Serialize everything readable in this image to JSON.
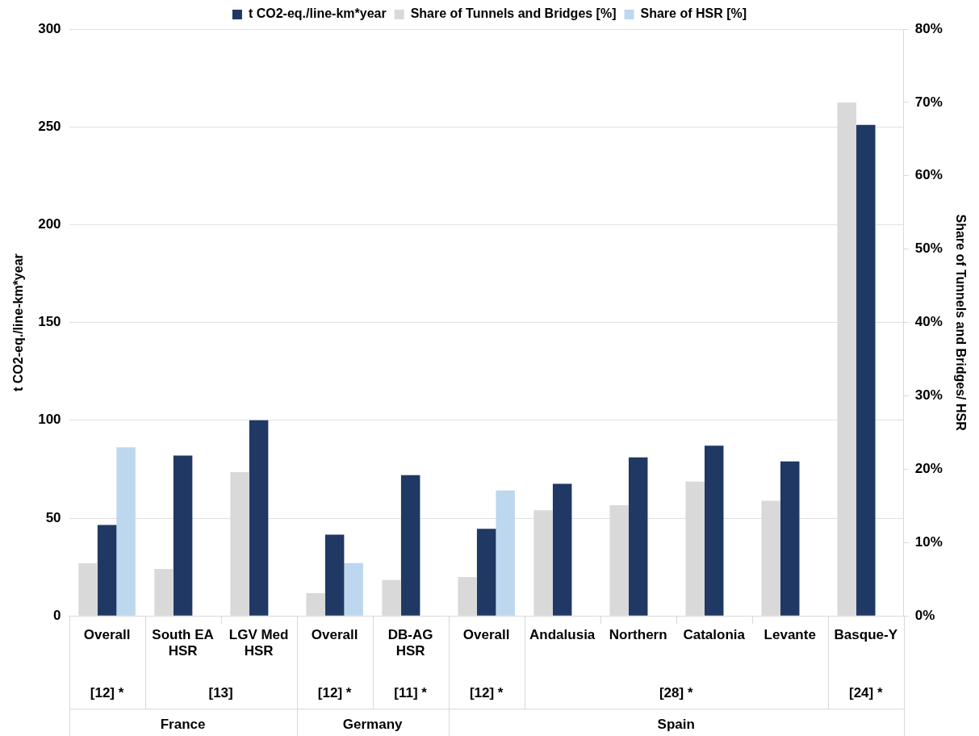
{
  "chart_data": {
    "type": "bar",
    "categories": [
      "Overall",
      "South EA HSR",
      "LGV Med HSR",
      "Overall",
      "DB-AG HSR",
      "Overall",
      "Andalusia",
      "Northern",
      "Catalonia",
      "Levante",
      "Basque-Y"
    ],
    "series": [
      {
        "name": "Share of Tunnels and Bridges [%]",
        "color": "#d9d9d9",
        "axis": "y2",
        "values": [
          7.2,
          6.4,
          19.6,
          3.1,
          4.9,
          5.3,
          14.4,
          15.1,
          18.3,
          15.7,
          70
        ]
      },
      {
        "name": "t CO2-eq./line-km*year",
        "color": "#203864",
        "values": [
          46.5,
          82,
          100,
          41.5,
          72,
          44.5,
          67.5,
          81,
          87,
          79,
          251
        ]
      },
      {
        "name": "Share of HSR [%]",
        "color": "#bdd7ee",
        "axis": "y2",
        "values": [
          23,
          null,
          null,
          7.2,
          null,
          17.1,
          null,
          null,
          null,
          null,
          null
        ]
      }
    ],
    "ylabel": "t CO2-eq./line-km*year",
    "y2label": "Share of Tunnels and Bridges/ HSR",
    "ylim": [
      0,
      300
    ],
    "yticks": [
      0,
      50,
      100,
      150,
      200,
      250,
      300
    ],
    "y2lim": [
      0,
      80
    ],
    "y2ticks": [
      {
        "value": 0,
        "label": "0%"
      },
      {
        "value": 10,
        "label": "10%"
      },
      {
        "value": 20,
        "label": "20%"
      },
      {
        "value": 30,
        "label": "30%"
      },
      {
        "value": 40,
        "label": "40%"
      },
      {
        "value": 50,
        "label": "50%"
      },
      {
        "value": 60,
        "label": "60%"
      },
      {
        "value": 70,
        "label": "70%"
      },
      {
        "value": 80,
        "label": "80%"
      }
    ],
    "grid": "y",
    "legend": "top",
    "annotations": [
      "[12] *",
      "[13]",
      "[12] *",
      "[11] *",
      "[12] *",
      "[28] *",
      "[24] *",
      "France",
      "Germany",
      "Spain"
    ]
  }
}
